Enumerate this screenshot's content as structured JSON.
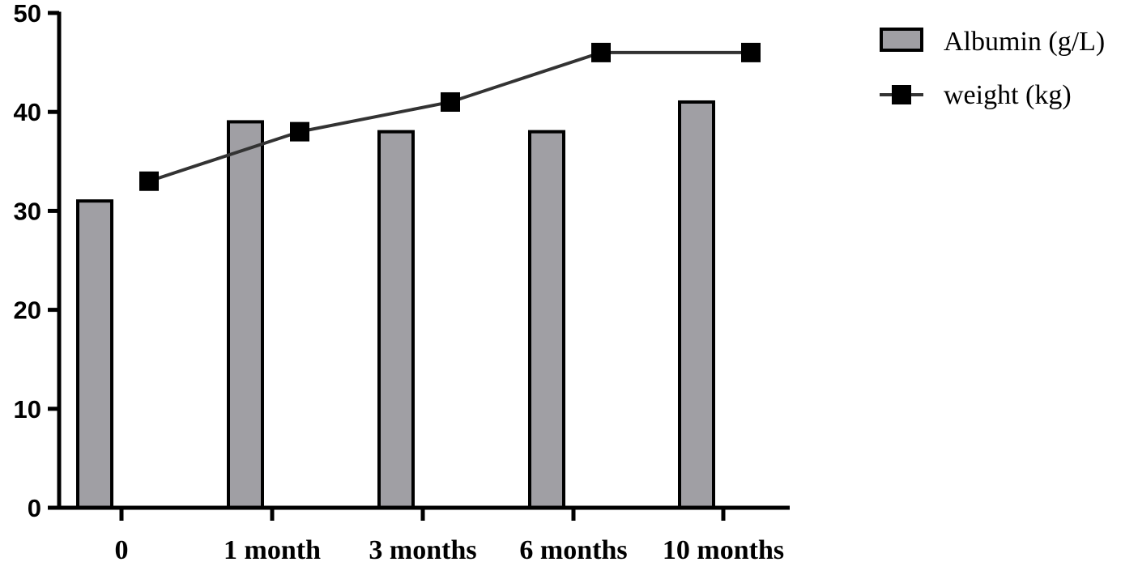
{
  "chart_data": {
    "type": "bar",
    "categories": [
      "0",
      "1 month",
      "3 months",
      "6 months",
      "10 months"
    ],
    "series": [
      {
        "name": "Albumin (g/L)",
        "type": "bar",
        "values": [
          31,
          39,
          38,
          38,
          41
        ],
        "color": "#a09fa4"
      },
      {
        "name": "weight (kg)",
        "type": "line",
        "values": [
          33,
          38,
          41,
          46,
          46
        ],
        "color": "#000000",
        "line_color": "#333333",
        "marker": "square"
      }
    ],
    "ylim": [
      0,
      50
    ],
    "yticks": [
      0,
      10,
      20,
      30,
      40,
      50
    ],
    "ytick_labels": [
      "0",
      "10",
      "20",
      "30",
      "40",
      "50"
    ],
    "title": "",
    "xlabel": "",
    "ylabel": "",
    "grid": false,
    "legend_position": "top-right"
  },
  "legend": {
    "items": [
      {
        "label": "Albumin (g/L)",
        "symbol": "bar"
      },
      {
        "label": "weight (kg)",
        "symbol": "line-square"
      }
    ]
  }
}
